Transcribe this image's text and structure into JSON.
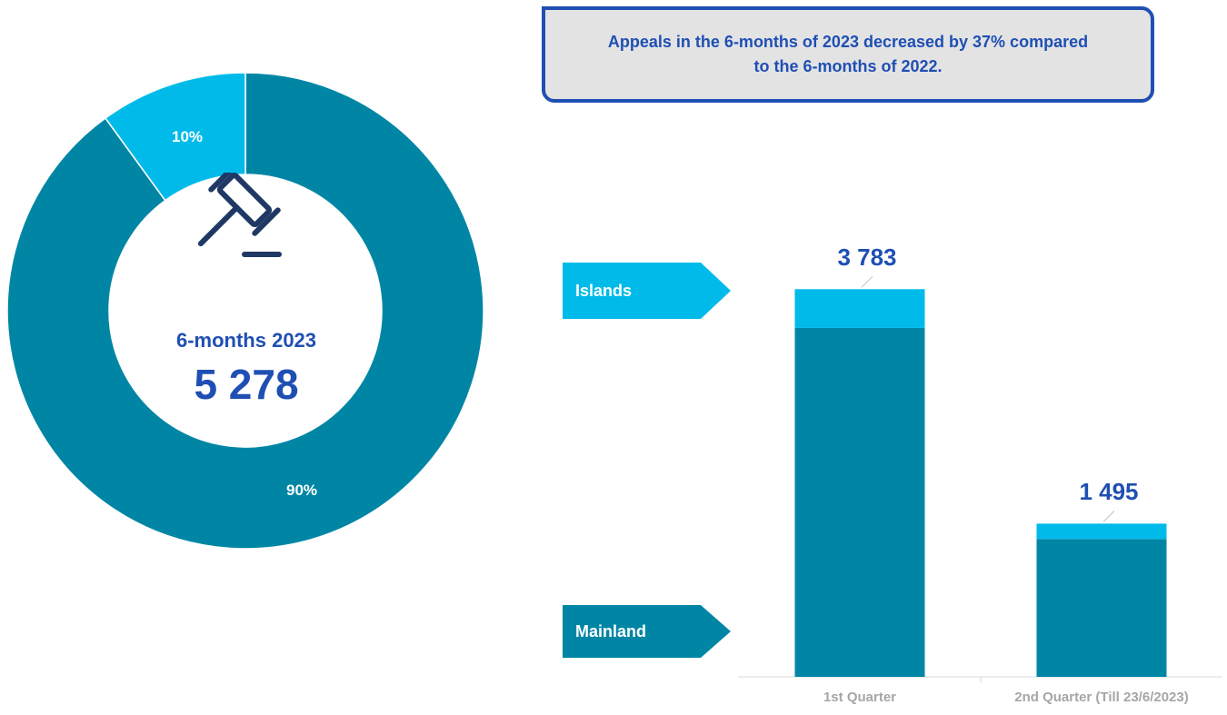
{
  "colors": {
    "mainland": "#0086a4",
    "islands": "#00bbe9",
    "accent_text": "#1f4fb3",
    "callout_bg": "#e3e3e4",
    "axis_text": "#a6a6a6",
    "icon": "#1f3864"
  },
  "callout": {
    "text": "Appeals in the 6-months of 2023 decreased by 37% compared to the 6-months of 2022."
  },
  "donut_center": {
    "icon": "gavel-icon",
    "label": "6-months 2023",
    "value": "5 278"
  },
  "legend": {
    "islands_label": "Islands",
    "mainland_label": "Mainland"
  },
  "chart_data": [
    {
      "type": "pie",
      "subtype": "donut",
      "slices": [
        {
          "category": "Mainland",
          "value": 90,
          "label": "90%"
        },
        {
          "category": "Islands",
          "value": 10,
          "label": "10%"
        }
      ]
    },
    {
      "type": "bar",
      "stacked": true,
      "categories": [
        "1st Quarter",
        "2nd Quarter (Till 23/6/2023)"
      ],
      "series": [
        {
          "name": "Mainland",
          "values": [
            3405,
            1345
          ]
        },
        {
          "name": "Islands",
          "values": [
            378,
            150
          ]
        }
      ],
      "totals": [
        3783,
        1495
      ],
      "total_labels": [
        "3 783",
        "1 495"
      ],
      "ylim": [
        0,
        4220
      ]
    }
  ]
}
